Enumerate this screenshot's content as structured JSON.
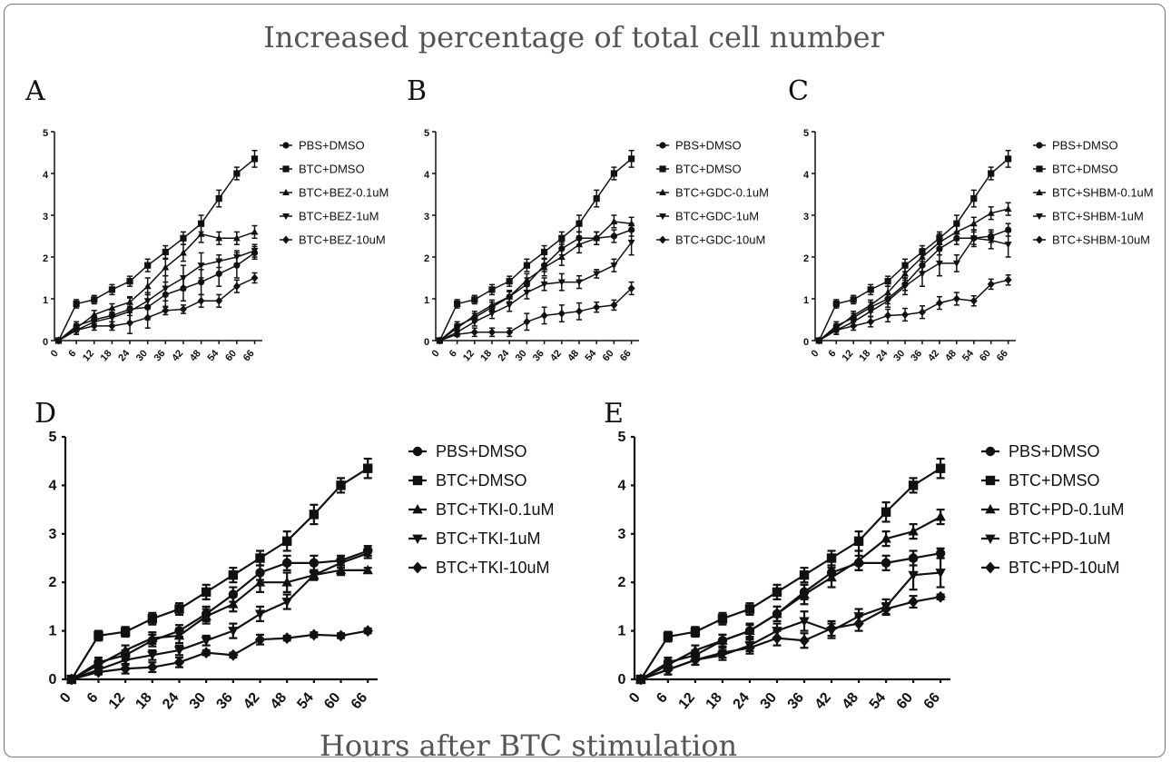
{
  "figure": {
    "title": "Increased percentage of total cell number",
    "xlabel": "Hours after BTC stimulation"
  },
  "chart_data": [
    {
      "panel": "A",
      "type": "line",
      "x": [
        0,
        6,
        12,
        18,
        24,
        30,
        36,
        42,
        48,
        54,
        60,
        66
      ],
      "ylim": [
        0,
        5
      ],
      "yticks": [
        0,
        1,
        2,
        3,
        4,
        5
      ],
      "legend_position": "right",
      "series": [
        {
          "name": "PBS+DMSO",
          "marker": "circle",
          "values": [
            0,
            0.35,
            0.5,
            0.6,
            0.75,
            0.8,
            1.1,
            1.25,
            1.4,
            1.6,
            1.8,
            2.1
          ],
          "err": [
            0.05,
            0.1,
            0.1,
            0.15,
            0.3,
            0.3,
            0.3,
            0.3,
            0.3,
            0.3,
            0.3,
            0.15
          ]
        },
        {
          "name": "BTC+DMSO",
          "marker": "square",
          "values": [
            0,
            0.88,
            0.98,
            1.22,
            1.42,
            1.8,
            2.12,
            2.45,
            2.8,
            3.4,
            4.0,
            4.35
          ],
          "err": [
            0.05,
            0.1,
            0.1,
            0.12,
            0.12,
            0.15,
            0.15,
            0.15,
            0.2,
            0.2,
            0.15,
            0.2
          ]
        },
        {
          "name": "BTC+BEZ-0.1uM",
          "marker": "triangle",
          "values": [
            0,
            0.3,
            0.62,
            0.78,
            0.92,
            1.3,
            1.75,
            2.1,
            2.55,
            2.45,
            2.45,
            2.6
          ],
          "err": [
            0.05,
            0.1,
            0.1,
            0.1,
            0.1,
            0.2,
            0.2,
            0.2,
            0.2,
            0.15,
            0.15,
            0.15
          ]
        },
        {
          "name": "BTC+BEZ-1uM",
          "marker": "triangle-down",
          "values": [
            0,
            0.25,
            0.45,
            0.55,
            0.7,
            0.95,
            1.25,
            1.5,
            1.8,
            1.9,
            2.0,
            2.15
          ],
          "err": [
            0.05,
            0.1,
            0.1,
            0.1,
            0.1,
            0.2,
            0.3,
            0.3,
            0.3,
            0.15,
            0.15,
            0.15
          ]
        },
        {
          "name": "BTC+BEZ-10uM",
          "marker": "diamond",
          "values": [
            0,
            0.25,
            0.35,
            0.35,
            0.42,
            0.55,
            0.72,
            0.75,
            0.95,
            0.95,
            1.3,
            1.5
          ],
          "err": [
            0.05,
            0.1,
            0.1,
            0.1,
            0.25,
            0.25,
            0.1,
            0.1,
            0.15,
            0.15,
            0.15,
            0.12
          ]
        }
      ]
    },
    {
      "panel": "B",
      "type": "line",
      "x": [
        0,
        6,
        12,
        18,
        24,
        30,
        36,
        42,
        48,
        54,
        60,
        66
      ],
      "ylim": [
        0,
        5
      ],
      "yticks": [
        0,
        1,
        2,
        3,
        4,
        5
      ],
      "legend_position": "right",
      "series": [
        {
          "name": "PBS+DMSO",
          "marker": "circle",
          "values": [
            0,
            0.35,
            0.55,
            0.8,
            1.05,
            1.35,
            1.8,
            2.2,
            2.45,
            2.45,
            2.5,
            2.65
          ],
          "err": [
            0.05,
            0.1,
            0.1,
            0.12,
            0.12,
            0.15,
            0.15,
            0.15,
            0.15,
            0.15,
            0.15,
            0.15
          ]
        },
        {
          "name": "BTC+DMSO",
          "marker": "square",
          "values": [
            0,
            0.88,
            0.98,
            1.22,
            1.42,
            1.8,
            2.12,
            2.45,
            2.8,
            3.4,
            4.0,
            4.35
          ],
          "err": [
            0.05,
            0.1,
            0.1,
            0.12,
            0.12,
            0.15,
            0.15,
            0.15,
            0.2,
            0.2,
            0.15,
            0.2
          ]
        },
        {
          "name": "BTC+GDC-0.1uM",
          "marker": "triangle",
          "values": [
            0,
            0.3,
            0.6,
            0.85,
            1.05,
            1.45,
            1.75,
            2.0,
            2.3,
            2.45,
            2.85,
            2.8
          ],
          "err": [
            0.05,
            0.1,
            0.1,
            0.12,
            0.15,
            0.15,
            0.2,
            0.2,
            0.2,
            0.15,
            0.15,
            0.15
          ]
        },
        {
          "name": "BTC+GDC-1uM",
          "marker": "triangle-down",
          "values": [
            0,
            0.2,
            0.45,
            0.65,
            0.85,
            1.15,
            1.35,
            1.4,
            1.4,
            1.6,
            1.8,
            2.35
          ],
          "err": [
            0.05,
            0.1,
            0.1,
            0.12,
            0.15,
            0.15,
            0.15,
            0.2,
            0.15,
            0.1,
            0.15,
            0.3
          ]
        },
        {
          "name": "BTC+GDC-10uM",
          "marker": "diamond",
          "values": [
            0,
            0.15,
            0.2,
            0.2,
            0.2,
            0.45,
            0.6,
            0.65,
            0.7,
            0.8,
            0.85,
            1.25
          ],
          "err": [
            0.05,
            0.05,
            0.1,
            0.1,
            0.1,
            0.2,
            0.2,
            0.2,
            0.2,
            0.12,
            0.12,
            0.15
          ]
        }
      ]
    },
    {
      "panel": "C",
      "type": "line",
      "x": [
        0,
        6,
        12,
        18,
        24,
        30,
        36,
        42,
        48,
        54,
        60,
        66
      ],
      "ylim": [
        0,
        5
      ],
      "yticks": [
        0,
        1,
        2,
        3,
        4,
        5
      ],
      "legend_position": "right",
      "series": [
        {
          "name": "PBS+DMSO",
          "marker": "circle",
          "values": [
            0,
            0.35,
            0.55,
            0.8,
            1.0,
            1.35,
            1.8,
            2.2,
            2.45,
            2.45,
            2.5,
            2.65
          ],
          "err": [
            0.05,
            0.1,
            0.1,
            0.12,
            0.12,
            0.15,
            0.15,
            0.15,
            0.15,
            0.15,
            0.15,
            0.15
          ]
        },
        {
          "name": "BTC+DMSO",
          "marker": "square",
          "values": [
            0,
            0.88,
            0.98,
            1.22,
            1.42,
            1.8,
            2.12,
            2.45,
            2.8,
            3.4,
            4.0,
            4.35
          ],
          "err": [
            0.05,
            0.1,
            0.1,
            0.12,
            0.12,
            0.15,
            0.15,
            0.15,
            0.2,
            0.2,
            0.15,
            0.2
          ]
        },
        {
          "name": "BTC+SHBM-0.1uM",
          "marker": "triangle",
          "values": [
            0,
            0.3,
            0.6,
            0.85,
            1.15,
            1.6,
            2.0,
            2.35,
            2.6,
            2.8,
            3.05,
            3.15
          ],
          "err": [
            0.05,
            0.1,
            0.1,
            0.12,
            0.15,
            0.15,
            0.2,
            0.2,
            0.2,
            0.15,
            0.15,
            0.15
          ]
        },
        {
          "name": "BTC+SHBM-1uM",
          "marker": "triangle-down",
          "values": [
            0,
            0.25,
            0.45,
            0.7,
            0.95,
            1.3,
            1.6,
            1.85,
            1.85,
            2.45,
            2.4,
            2.3
          ],
          "err": [
            0.05,
            0.1,
            0.1,
            0.12,
            0.15,
            0.2,
            0.3,
            0.3,
            0.2,
            0.2,
            0.2,
            0.3
          ]
        },
        {
          "name": "BTC+SHBM-10uM",
          "marker": "diamond",
          "values": [
            0,
            0.25,
            0.35,
            0.45,
            0.6,
            0.62,
            0.68,
            0.9,
            1.0,
            0.95,
            1.35,
            1.45
          ],
          "err": [
            0.05,
            0.1,
            0.1,
            0.12,
            0.15,
            0.15,
            0.15,
            0.15,
            0.15,
            0.12,
            0.12,
            0.12
          ]
        }
      ]
    },
    {
      "panel": "D",
      "type": "line",
      "x": [
        0,
        6,
        12,
        18,
        24,
        30,
        36,
        42,
        48,
        54,
        60,
        66
      ],
      "ylim": [
        0,
        5
      ],
      "yticks": [
        0,
        1,
        2,
        3,
        4,
        5
      ],
      "legend_position": "right",
      "series": [
        {
          "name": "PBS+DMSO",
          "marker": "circle",
          "values": [
            0,
            0.35,
            0.5,
            0.8,
            1.0,
            1.35,
            1.75,
            2.2,
            2.4,
            2.4,
            2.45,
            2.65
          ],
          "err": [
            0.05,
            0.1,
            0.1,
            0.12,
            0.12,
            0.15,
            0.15,
            0.15,
            0.15,
            0.15,
            0.1,
            0.1
          ]
        },
        {
          "name": "BTC+DMSO",
          "marker": "square",
          "values": [
            0,
            0.9,
            0.98,
            1.25,
            1.45,
            1.8,
            2.15,
            2.5,
            2.85,
            3.4,
            4.0,
            4.35
          ],
          "err": [
            0.05,
            0.1,
            0.1,
            0.12,
            0.12,
            0.15,
            0.15,
            0.15,
            0.2,
            0.2,
            0.15,
            0.2
          ]
        },
        {
          "name": "BTC+TKI-0.1uM",
          "marker": "triangle",
          "values": [
            0,
            0.3,
            0.6,
            0.85,
            0.9,
            1.3,
            1.55,
            2.0,
            2.0,
            2.15,
            2.25,
            2.25
          ],
          "err": [
            0.05,
            0.1,
            0.1,
            0.12,
            0.15,
            0.15,
            0.15,
            0.2,
            0.2,
            0.1,
            0.1,
            0.05
          ]
        },
        {
          "name": "BTC+TKI-1uM",
          "marker": "triangle-down",
          "values": [
            0,
            0.2,
            0.4,
            0.5,
            0.6,
            0.8,
            1.0,
            1.35,
            1.6,
            2.15,
            2.4,
            2.6
          ],
          "err": [
            0.05,
            0.05,
            0.1,
            0.1,
            0.1,
            0.1,
            0.15,
            0.15,
            0.15,
            0.1,
            0.1,
            0.1
          ]
        },
        {
          "name": "BTC+TKI-10uM",
          "marker": "diamond",
          "values": [
            0,
            0.15,
            0.22,
            0.25,
            0.35,
            0.55,
            0.5,
            0.82,
            0.85,
            0.92,
            0.9,
            1.0
          ],
          "err": [
            0.05,
            0.05,
            0.1,
            0.1,
            0.1,
            0.05,
            0.05,
            0.1,
            0.05,
            0.05,
            0.05,
            0.05
          ]
        }
      ]
    },
    {
      "panel": "E",
      "type": "line",
      "x": [
        0,
        6,
        12,
        18,
        24,
        30,
        36,
        42,
        48,
        54,
        60,
        66
      ],
      "ylim": [
        0,
        5
      ],
      "yticks": [
        0,
        1,
        2,
        3,
        4,
        5
      ],
      "legend_position": "right",
      "series": [
        {
          "name": "PBS+DMSO",
          "marker": "circle",
          "values": [
            0,
            0.35,
            0.5,
            0.8,
            1.0,
            1.35,
            1.8,
            2.2,
            2.4,
            2.4,
            2.5,
            2.6
          ],
          "err": [
            0.05,
            0.1,
            0.1,
            0.12,
            0.12,
            0.15,
            0.15,
            0.15,
            0.15,
            0.15,
            0.15,
            0.1
          ]
        },
        {
          "name": "BTC+DMSO",
          "marker": "square",
          "values": [
            0,
            0.88,
            0.98,
            1.25,
            1.45,
            1.8,
            2.15,
            2.5,
            2.85,
            3.45,
            4.0,
            4.35
          ],
          "err": [
            0.05,
            0.1,
            0.1,
            0.12,
            0.12,
            0.15,
            0.15,
            0.15,
            0.2,
            0.2,
            0.15,
            0.2
          ]
        },
        {
          "name": "BTC+PD-0.1uM",
          "marker": "triangle",
          "values": [
            0,
            0.3,
            0.6,
            0.8,
            1.0,
            1.35,
            1.75,
            2.1,
            2.45,
            2.9,
            3.05,
            3.35
          ],
          "err": [
            0.05,
            0.1,
            0.1,
            0.12,
            0.15,
            0.15,
            0.2,
            0.2,
            0.2,
            0.15,
            0.15,
            0.15
          ]
        },
        {
          "name": "BTC+PD-1uM",
          "marker": "triangle-down",
          "values": [
            0,
            0.2,
            0.4,
            0.5,
            0.7,
            1.0,
            1.2,
            1.0,
            1.3,
            1.5,
            2.15,
            2.2
          ],
          "err": [
            0.05,
            0.1,
            0.1,
            0.1,
            0.12,
            0.15,
            0.2,
            0.15,
            0.15,
            0.15,
            0.3,
            0.3
          ]
        },
        {
          "name": "BTC+PD-10uM",
          "marker": "diamond",
          "values": [
            0,
            0.2,
            0.4,
            0.55,
            0.65,
            0.85,
            0.8,
            1.05,
            1.15,
            1.45,
            1.6,
            1.7
          ],
          "err": [
            0.05,
            0.1,
            0.1,
            0.1,
            0.12,
            0.15,
            0.15,
            0.15,
            0.15,
            0.12,
            0.12,
            0.05
          ]
        }
      ]
    }
  ]
}
